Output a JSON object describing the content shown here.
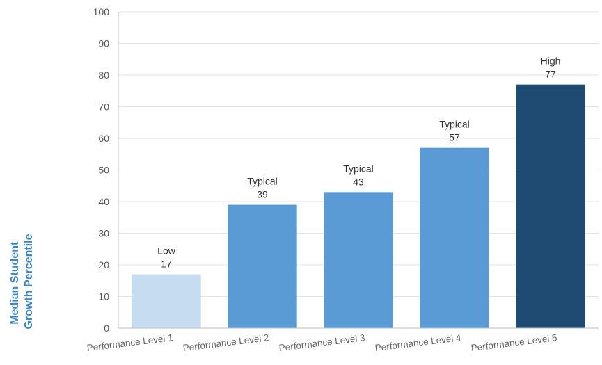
{
  "chart_data": {
    "type": "bar",
    "categories": [
      "Performance Level 1",
      "Performance Level 2",
      "Performance Level 3",
      "Performance Level 4",
      "Performance Level 5"
    ],
    "values": [
      17,
      39,
      43,
      57,
      77
    ],
    "bar_labels": [
      "Low",
      "Typical",
      "Typical",
      "Typical",
      "High"
    ],
    "bar_colors": [
      "#c6dcf1",
      "#5b9bd5",
      "#5b9bd5",
      "#5b9bd5",
      "#1f4a72"
    ],
    "ylabel": [
      "Median Student",
      "Growth Percentile"
    ],
    "xlabel": "",
    "ylim": [
      0,
      100
    ],
    "yticks": [
      0,
      10,
      20,
      30,
      40,
      50,
      60,
      70,
      80,
      90,
      100
    ],
    "grid": true,
    "legend": "none"
  }
}
